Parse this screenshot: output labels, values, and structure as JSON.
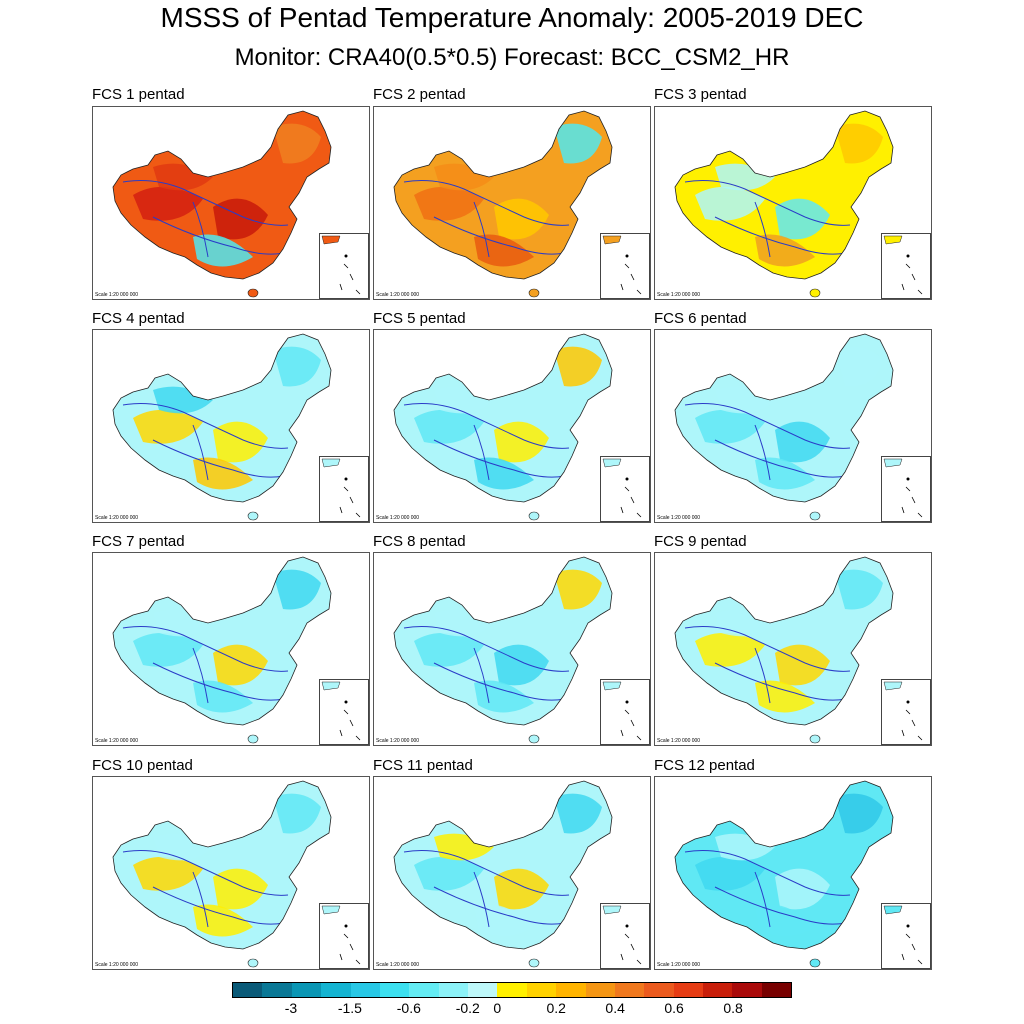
{
  "title": "MSSS of Pentad Temperature Anomaly: 2005-2019 DEC",
  "subtitle": "Monitor: CRA40(0.5*0.5)   Forecast: BCC_CSM2_HR",
  "scale_text": "Scale 1:20 000 000",
  "panels": [
    {
      "label": "FCS 1 pentad",
      "base": "#f05a14",
      "patches": [
        "#d42010",
        "#c81a0a",
        "#f08020",
        "#50e8f0",
        "#e03a10"
      ]
    },
    {
      "label": "FCS 2 pentad",
      "base": "#f4a020",
      "patches": [
        "#f07014",
        "#ffc800",
        "#50e8f0",
        "#e85a10",
        "#f48c18"
      ]
    },
    {
      "label": "FCS 3 pentad",
      "base": "#fff000",
      "patches": [
        "#aef6fa",
        "#60e8f4",
        "#ffc800",
        "#f0a020",
        "#aef6fa"
      ]
    },
    {
      "label": "FCS 4 pentad",
      "base": "#aef6fa",
      "patches": [
        "#ffd800",
        "#fff000",
        "#60e8f4",
        "#ffc800",
        "#40d8f0"
      ]
    },
    {
      "label": "FCS 5 pentad",
      "base": "#aef6fa",
      "patches": [
        "#60e8f4",
        "#fff000",
        "#ffc800",
        "#40d8f0",
        "#aef6fa"
      ]
    },
    {
      "label": "FCS 6 pentad",
      "base": "#aef6fa",
      "patches": [
        "#60e8f4",
        "#40d8f0",
        "#aef6fa",
        "#60e8f4",
        "#aef6fa"
      ]
    },
    {
      "label": "FCS 7 pentad",
      "base": "#aef6fa",
      "patches": [
        "#60e8f4",
        "#ffd800",
        "#40d8f0",
        "#60e8f4",
        "#aef6fa"
      ]
    },
    {
      "label": "FCS 8 pentad",
      "base": "#aef6fa",
      "patches": [
        "#60e8f4",
        "#40d8f0",
        "#ffd800",
        "#60e8f4",
        "#aef6fa"
      ]
    },
    {
      "label": "FCS 9 pentad",
      "base": "#aef6fa",
      "patches": [
        "#fff000",
        "#ffd800",
        "#60e8f4",
        "#fff000",
        "#aef6fa"
      ]
    },
    {
      "label": "FCS 10 pentad",
      "base": "#aef6fa",
      "patches": [
        "#ffd800",
        "#fff000",
        "#60e8f4",
        "#fff000",
        "#aef6fa"
      ]
    },
    {
      "label": "FCS 11 pentad",
      "base": "#aef6fa",
      "patches": [
        "#60e8f4",
        "#ffd800",
        "#40d8f0",
        "#aef6fa",
        "#fff000"
      ]
    },
    {
      "label": "FCS 12 pentad",
      "base": "#60e8f4",
      "patches": [
        "#40d8f0",
        "#aef6fa",
        "#30c8e8",
        "#60e8f4",
        "#aef6fa"
      ]
    }
  ],
  "colorbar": {
    "colors": [
      "#0a5a78",
      "#0a7896",
      "#0a96b4",
      "#14b4d2",
      "#28c8e6",
      "#3ce0f0",
      "#64ecf4",
      "#8cf2f8",
      "#bef8fa",
      "#fff000",
      "#ffd200",
      "#ffb400",
      "#f59614",
      "#f0781e",
      "#eb5a1e",
      "#e63c14",
      "#c81e0a",
      "#aa0a0a",
      "#780000"
    ],
    "tick_labels": [
      "-3",
      "-1.5",
      "-0.6",
      "-0.2",
      "0",
      "0.2",
      "0.4",
      "0.6",
      "0.8"
    ]
  }
}
